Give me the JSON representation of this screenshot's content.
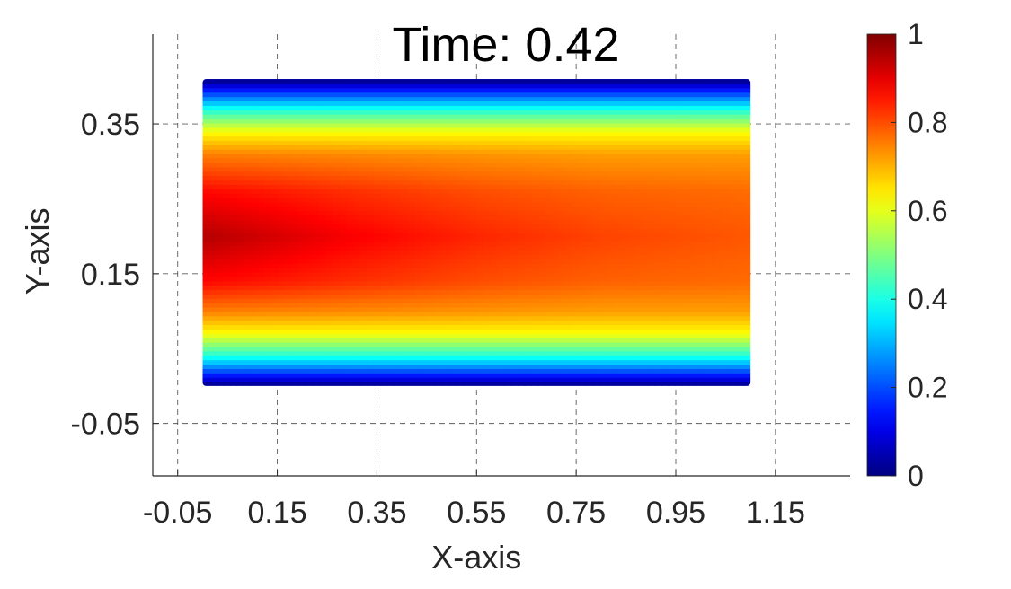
{
  "chart_data": {
    "type": "heatmap",
    "title": "Time: 0.42",
    "xlabel": "X-axis",
    "ylabel": "Y-axis",
    "xlim": [
      -0.1,
      1.3
    ],
    "ylim": [
      -0.12,
      0.47
    ],
    "x_ticks": [
      -0.05,
      0.15,
      0.35,
      0.55,
      0.75,
      0.95,
      1.15
    ],
    "x_tick_labels": [
      "-0.05",
      "0.15",
      "0.35",
      "0.55",
      "0.75",
      "0.95",
      "1.15"
    ],
    "y_ticks": [
      -0.05,
      0.15,
      0.35
    ],
    "y_tick_labels": [
      "-0.05",
      "0.15",
      "0.35"
    ],
    "grid": true,
    "grid_style": "dashed",
    "domain": {
      "x": [
        0.0,
        1.1
      ],
      "y": [
        0.0,
        0.41
      ]
    },
    "colormap": "jet",
    "colorbar": {
      "limits": [
        0,
        1
      ],
      "ticks": [
        0,
        0.2,
        0.4,
        0.6,
        0.8,
        1
      ],
      "tick_labels": [
        "0",
        "0.2",
        "0.4",
        "0.6",
        "0.8",
        "1"
      ]
    },
    "field_profile": {
      "description_of_values": "value along y at cross-sections",
      "y": [
        0.0,
        0.02,
        0.04,
        0.07,
        0.1,
        0.14,
        0.2,
        0.26,
        0.31,
        0.34,
        0.37,
        0.39,
        0.41
      ],
      "x_sections": [
        0.0,
        0.3,
        0.55,
        0.8,
        1.1
      ],
      "values": [
        [
          0.0,
          0.2,
          0.4,
          0.62,
          0.75,
          0.87,
          0.95,
          0.87,
          0.75,
          0.62,
          0.4,
          0.2,
          0.0
        ],
        [
          0.0,
          0.2,
          0.4,
          0.62,
          0.74,
          0.83,
          0.88,
          0.83,
          0.74,
          0.62,
          0.4,
          0.2,
          0.0
        ],
        [
          0.0,
          0.2,
          0.4,
          0.62,
          0.73,
          0.8,
          0.84,
          0.8,
          0.73,
          0.62,
          0.4,
          0.2,
          0.0
        ],
        [
          0.0,
          0.2,
          0.4,
          0.62,
          0.72,
          0.78,
          0.81,
          0.78,
          0.72,
          0.62,
          0.4,
          0.2,
          0.0
        ],
        [
          0.0,
          0.2,
          0.4,
          0.62,
          0.72,
          0.77,
          0.79,
          0.77,
          0.72,
          0.62,
          0.4,
          0.2,
          0.0
        ]
      ]
    }
  }
}
